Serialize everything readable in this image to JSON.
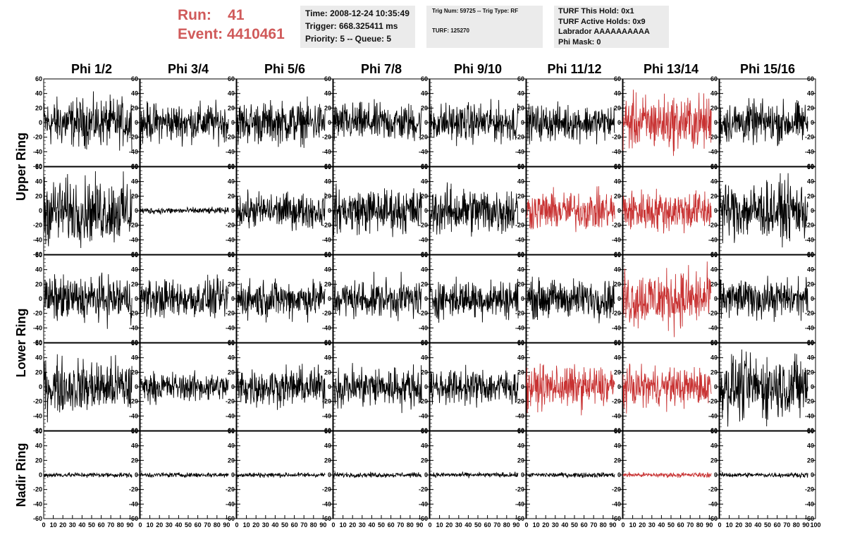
{
  "header": {
    "run_label": "Run:",
    "run_value": "41",
    "event_label": "Event:",
    "event_value": "4410461",
    "time": "Time: 2008-12-24 10:35:49",
    "trigger": "Trigger: 668.325411 ms",
    "priority": "Priority: 5 -- Queue: 5",
    "trig_num": "Trig Num: 59725 -- Trig Type: RF",
    "turf": "TURF: 125270",
    "turf_this_hold": "TURF This Hold: 0x1",
    "turf_active_holds": "TURF Active Holds: 0x9",
    "labrador": "Labrador AAAAAAAAAA",
    "phi_mask": "Phi Mask: 0"
  },
  "colors": {
    "normal_trace": "#000000",
    "highlight_trace": "#c83232",
    "header_red": "#d05a5a",
    "box_bg": "#ebebeb"
  },
  "chart_data": {
    "type": "line",
    "columns": [
      "Phi 1/2",
      "Phi 3/4",
      "Phi 5/6",
      "Phi 7/8",
      "Phi 9/10",
      "Phi 11/12",
      "Phi 13/14",
      "Phi 15/16"
    ],
    "row_groups": [
      "Upper Ring",
      "Lower Ring",
      "Nadir Ring"
    ],
    "rows_per_group": [
      2,
      2,
      1
    ],
    "ylim": [
      -60,
      60
    ],
    "yticks": [
      -60,
      -40,
      -20,
      0,
      20,
      40,
      60
    ],
    "xlim": [
      0,
      100
    ],
    "xticks": [
      0,
      10,
      20,
      30,
      40,
      50,
      60,
      70,
      80,
      90,
      100
    ],
    "samples_per_trace": 260,
    "amplitude_by_row": [
      [
        30,
        24,
        26,
        24,
        24,
        22,
        34,
        26
      ],
      [
        40,
        4,
        22,
        28,
        30,
        24,
        26,
        36
      ],
      [
        28,
        24,
        24,
        24,
        24,
        24,
        36,
        24
      ],
      [
        34,
        18,
        24,
        26,
        22,
        26,
        24,
        40
      ],
      [
        3,
        3,
        3,
        3,
        3,
        3,
        3,
        3
      ]
    ],
    "highlighted_panels": [
      [
        0,
        6
      ],
      [
        1,
        5
      ],
      [
        1,
        6
      ],
      [
        2,
        6
      ],
      [
        3,
        5
      ],
      [
        3,
        6
      ],
      [
        4,
        6
      ]
    ]
  }
}
